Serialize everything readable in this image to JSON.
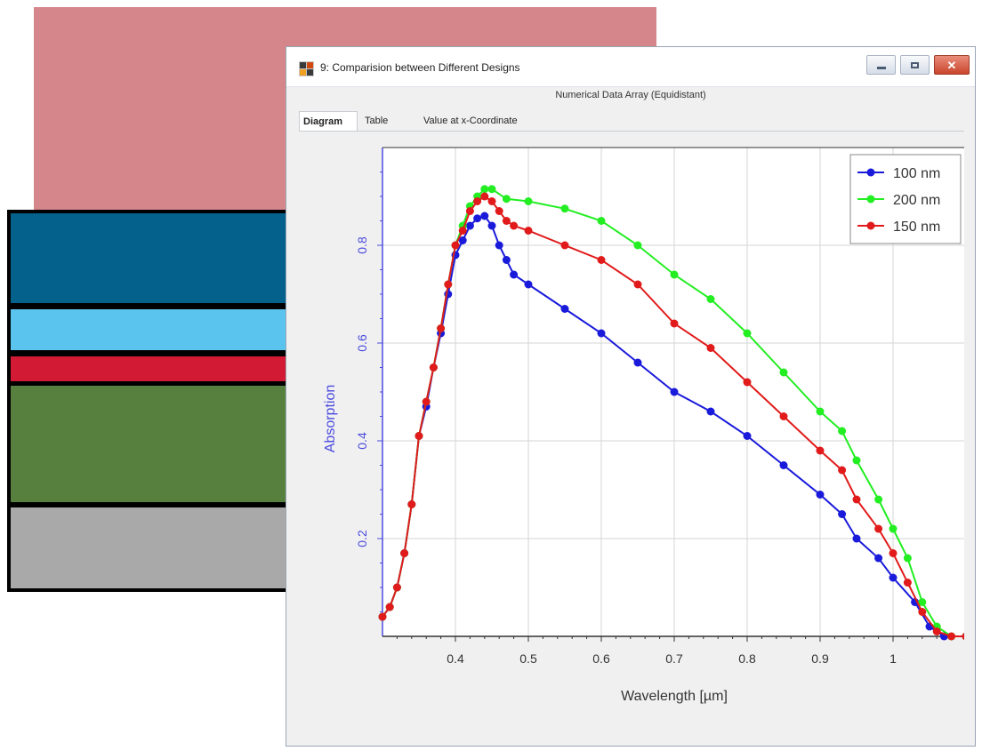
{
  "colors": {
    "pink": "#d4868b",
    "layer_dark_blue": "#03618c",
    "layer_light_blue": "#5ac3ee",
    "layer_red": "#d21a34",
    "layer_green": "#57803e",
    "layer_gray": "#a9a9a9",
    "series_100": "#1a1adb",
    "series_200": "#22ee22",
    "series_150": "#e11b1b",
    "axis_blue": "#4a4ae0"
  },
  "window": {
    "title": "9: Comparision between Different Designs",
    "subtitle": "Numerical Data Array (Equidistant)",
    "tabs": [
      {
        "label": "Diagram",
        "active": true
      },
      {
        "label": "Table",
        "active": false
      },
      {
        "label": "Value at x-Coordinate",
        "active": false
      }
    ]
  },
  "chart_data": {
    "type": "line",
    "xlabel": "Wavelength [µm]",
    "ylabel": "Absorption",
    "xlim": [
      0.3,
      1.1
    ],
    "ylim": [
      0,
      1.0
    ],
    "x_ticks": [
      0.4,
      0.5,
      0.6,
      0.7,
      0.8,
      0.9,
      1
    ],
    "x_tick_labels": [
      "0.4",
      "0.5",
      "0.6",
      "0.7",
      "0.8",
      "0.9",
      "1"
    ],
    "y_ticks": [
      0.2,
      0.4,
      0.6,
      0.8
    ],
    "y_tick_labels": [
      "0.2",
      "0.4",
      "0.6",
      "0.8"
    ],
    "grid": true,
    "legend_position": "top-right",
    "series": [
      {
        "name": "100 nm",
        "color": "#1a1adb",
        "points": [
          [
            0.3,
            0.04
          ],
          [
            0.31,
            0.06
          ],
          [
            0.32,
            0.1
          ],
          [
            0.33,
            0.17
          ],
          [
            0.34,
            0.27
          ],
          [
            0.35,
            0.41
          ],
          [
            0.36,
            0.47
          ],
          [
            0.37,
            0.55
          ],
          [
            0.38,
            0.62
          ],
          [
            0.39,
            0.7
          ],
          [
            0.4,
            0.78
          ],
          [
            0.41,
            0.81
          ],
          [
            0.42,
            0.84
          ],
          [
            0.43,
            0.855
          ],
          [
            0.44,
            0.86
          ],
          [
            0.45,
            0.84
          ],
          [
            0.46,
            0.8
          ],
          [
            0.47,
            0.77
          ],
          [
            0.48,
            0.74
          ],
          [
            0.5,
            0.72
          ],
          [
            0.55,
            0.67
          ],
          [
            0.6,
            0.62
          ],
          [
            0.65,
            0.56
          ],
          [
            0.7,
            0.5
          ],
          [
            0.75,
            0.46
          ],
          [
            0.8,
            0.41
          ],
          [
            0.85,
            0.35
          ],
          [
            0.9,
            0.29
          ],
          [
            0.93,
            0.25
          ],
          [
            0.95,
            0.2
          ],
          [
            0.98,
            0.16
          ],
          [
            1.0,
            0.12
          ],
          [
            1.03,
            0.07
          ],
          [
            1.05,
            0.02
          ],
          [
            1.07,
            0.0
          ],
          [
            1.1,
            0.0
          ]
        ]
      },
      {
        "name": "200 nm",
        "color": "#22ee22",
        "points": [
          [
            0.3,
            0.04
          ],
          [
            0.31,
            0.06
          ],
          [
            0.32,
            0.1
          ],
          [
            0.33,
            0.17
          ],
          [
            0.34,
            0.27
          ],
          [
            0.35,
            0.41
          ],
          [
            0.36,
            0.48
          ],
          [
            0.37,
            0.55
          ],
          [
            0.38,
            0.63
          ],
          [
            0.39,
            0.72
          ],
          [
            0.4,
            0.8
          ],
          [
            0.41,
            0.84
          ],
          [
            0.42,
            0.88
          ],
          [
            0.43,
            0.9
          ],
          [
            0.44,
            0.915
          ],
          [
            0.45,
            0.915
          ],
          [
            0.47,
            0.895
          ],
          [
            0.5,
            0.89
          ],
          [
            0.55,
            0.875
          ],
          [
            0.6,
            0.85
          ],
          [
            0.65,
            0.8
          ],
          [
            0.7,
            0.74
          ],
          [
            0.75,
            0.69
          ],
          [
            0.8,
            0.62
          ],
          [
            0.85,
            0.54
          ],
          [
            0.9,
            0.46
          ],
          [
            0.93,
            0.42
          ],
          [
            0.95,
            0.36
          ],
          [
            0.98,
            0.28
          ],
          [
            1.0,
            0.22
          ],
          [
            1.02,
            0.16
          ],
          [
            1.04,
            0.07
          ],
          [
            1.06,
            0.02
          ],
          [
            1.08,
            0.0
          ],
          [
            1.1,
            0.0
          ]
        ]
      },
      {
        "name": "150 nm",
        "color": "#e11b1b",
        "points": [
          [
            0.3,
            0.04
          ],
          [
            0.31,
            0.06
          ],
          [
            0.32,
            0.1
          ],
          [
            0.33,
            0.17
          ],
          [
            0.34,
            0.27
          ],
          [
            0.35,
            0.41
          ],
          [
            0.36,
            0.48
          ],
          [
            0.37,
            0.55
          ],
          [
            0.38,
            0.63
          ],
          [
            0.39,
            0.72
          ],
          [
            0.4,
            0.8
          ],
          [
            0.41,
            0.83
          ],
          [
            0.42,
            0.87
          ],
          [
            0.43,
            0.89
          ],
          [
            0.44,
            0.9
          ],
          [
            0.45,
            0.89
          ],
          [
            0.46,
            0.87
          ],
          [
            0.47,
            0.85
          ],
          [
            0.48,
            0.84
          ],
          [
            0.5,
            0.83
          ],
          [
            0.55,
            0.8
          ],
          [
            0.6,
            0.77
          ],
          [
            0.65,
            0.72
          ],
          [
            0.7,
            0.64
          ],
          [
            0.75,
            0.59
          ],
          [
            0.8,
            0.52
          ],
          [
            0.85,
            0.45
          ],
          [
            0.9,
            0.38
          ],
          [
            0.93,
            0.34
          ],
          [
            0.95,
            0.28
          ],
          [
            0.98,
            0.22
          ],
          [
            1.0,
            0.17
          ],
          [
            1.02,
            0.11
          ],
          [
            1.04,
            0.05
          ],
          [
            1.06,
            0.01
          ],
          [
            1.08,
            0.0
          ],
          [
            1.1,
            0.0
          ]
        ]
      }
    ]
  }
}
